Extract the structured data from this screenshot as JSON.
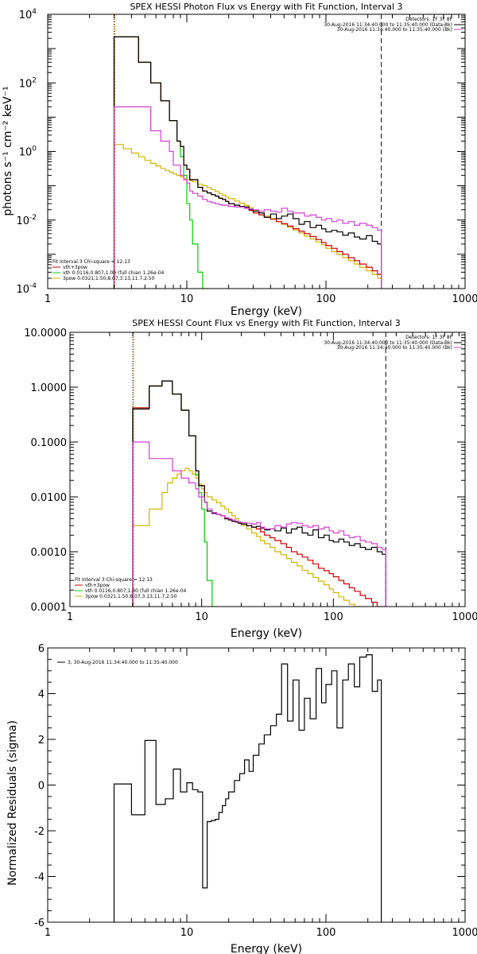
{
  "chart_data": [
    {
      "type": "line",
      "step": true,
      "title": "SPEX HESSI Photon Flux vs Energy with Fit Function, Interval 3",
      "xlabel": "Energy (keV)",
      "ylabel": "photons s⁻¹ cm⁻² keV⁻¹",
      "xscale": "log",
      "yscale": "log",
      "xlim": [
        1,
        1000
      ],
      "ylim": [
        0.0001,
        10000
      ],
      "xticks": [
        {
          "v": 1,
          "label": "1"
        },
        {
          "v": 10,
          "label": "10"
        },
        {
          "v": 100,
          "label": "100"
        },
        {
          "v": 1000,
          "label": "1000"
        }
      ],
      "yticks": [
        {
          "v": 0.0001,
          "b": "10",
          "e": "-4"
        },
        {
          "v": 0.01,
          "b": "10",
          "e": "-2"
        },
        {
          "v": 1,
          "b": "10",
          "e": "0"
        },
        {
          "v": 100,
          "b": "10",
          "e": "2"
        },
        {
          "v": 10000,
          "b": "10",
          "e": "4"
        }
      ],
      "vlines": [
        {
          "x": 3,
          "style": "dotted",
          "color": "#000000"
        },
        {
          "x": 250,
          "style": "dashed",
          "color": "#000000"
        }
      ],
      "legend_tr": {
        "header": "Detectors: 1F 3F 8F",
        "items": [
          {
            "label": "30-Aug-2016 11:34:40.000 to 11:35:40.000 (Data-Bk)",
            "color": "#000000"
          },
          {
            "label": "30-Aug-2016 11:34:40.000 to 11:35:40.000 (Bk)",
            "color": "#d43ed4"
          }
        ]
      },
      "legend_bl": {
        "header": "Fit Interval  3    Chi-square = 12.13",
        "items": [
          {
            "label": "vth+3pow",
            "color": "#d40000"
          },
          {
            "label": "vth 0.0116,0.807,1.00  (full chian 1.26e-04",
            "color": "#00cc00"
          },
          {
            "label": "3pow 0.0321,1.50,8.07,3.13,11.7,2.50",
            "color": "#d4b400"
          }
        ]
      },
      "edges": [
        3,
        3.5,
        4,
        4.5,
        5,
        5.5,
        6,
        6.5,
        7,
        7.5,
        8,
        8.5,
        9,
        9.5,
        10,
        10.5,
        11,
        12,
        13,
        14,
        15,
        16,
        17,
        18,
        19,
        20,
        22,
        24,
        26,
        28,
        30,
        33,
        36,
        40,
        44,
        48,
        53,
        58,
        64,
        70,
        77,
        85,
        93,
        100,
        110,
        120,
        132,
        145,
        160,
        175,
        195,
        215,
        235,
        250
      ],
      "series": [
        {
          "color": "#000000",
          "zorder": 5,
          "values": [
            2200,
            2200,
            2200,
            400,
            400,
            100,
            100,
            30,
            30,
            8,
            8,
            2,
            1.4,
            0.4,
            0.3,
            0.15,
            0.15,
            0.09,
            0.07,
            0.062,
            0.055,
            0.05,
            0.043,
            0.04,
            0.035,
            0.03,
            0.027,
            0.025,
            0.024,
            0.02,
            0.018,
            0.016,
            0.012,
            0.015,
            0.011,
            0.013,
            0.015,
            0.011,
            0.0075,
            0.009,
            0.006,
            0.007,
            0.0055,
            0.0045,
            0.005,
            0.0045,
            0.0036,
            0.0042,
            0.0032,
            0.0028,
            0.0035,
            0.0024,
            0.002
          ]
        },
        {
          "color": "#00cc00",
          "zorder": 3,
          "values": [
            2200,
            2200,
            2200,
            400,
            400,
            100,
            100,
            30,
            30,
            8,
            8,
            2,
            0.7,
            0.2,
            0.03,
            0.01,
            0.002,
            0.0003,
            0.0001
          ]
        },
        {
          "color": "#d40000",
          "zorder": 4,
          "values": [
            2200,
            2200,
            2200,
            400,
            400,
            100,
            100,
            30,
            30,
            8,
            8,
            2,
            1.4,
            0.4,
            0.3,
            0.15,
            0.15,
            0.09,
            0.07,
            0.062,
            0.055,
            0.05,
            0.043,
            0.04,
            0.035,
            0.03,
            0.027,
            0.025,
            0.022,
            0.019,
            0.016,
            0.014,
            0.012,
            0.0105,
            0.009,
            0.0078,
            0.0066,
            0.0056,
            0.0047,
            0.004,
            0.0033,
            0.0027,
            0.0022,
            0.0018,
            0.0015,
            0.0012,
            0.001,
            0.0008,
            0.00065,
            0.00052,
            0.00042,
            0.00033,
            0.00026
          ]
        },
        {
          "color": "#d4b400",
          "zorder": 2,
          "values": [
            1.6,
            1.2,
            0.9,
            0.7,
            0.55,
            0.45,
            0.38,
            0.32,
            0.28,
            0.25,
            0.22,
            0.2,
            0.18,
            0.16,
            0.15,
            0.14,
            0.13,
            0.11,
            0.1,
            0.088,
            0.078,
            0.068,
            0.06,
            0.053,
            0.047,
            0.042,
            0.036,
            0.031,
            0.027,
            0.023,
            0.019,
            0.016,
            0.013,
            0.011,
            0.009,
            0.0075,
            0.0062,
            0.0051,
            0.0042,
            0.0034,
            0.0028,
            0.0023,
            0.0019,
            0.0015,
            0.0012,
            0.001,
            0.0008,
            0.00065,
            0.00052,
            0.00042,
            0.00033,
            0.00026,
            0.0002
          ]
        },
        {
          "color": "#d43ed4",
          "zorder": 6,
          "values": [
            20,
            20,
            20,
            20,
            20,
            4,
            4,
            2,
            2,
            1,
            0.4,
            0.4,
            0.2,
            0.15,
            0.12,
            0.07,
            0.06,
            0.05,
            0.04,
            0.035,
            0.032,
            0.03,
            0.028,
            0.027,
            0.027,
            0.025,
            0.024,
            0.024,
            0.022,
            0.021,
            0.02,
            0.018,
            0.02,
            0.018,
            0.017,
            0.022,
            0.018,
            0.016,
            0.016,
            0.013,
            0.014,
            0.012,
            0.01,
            0.011,
            0.009,
            0.01,
            0.008,
            0.009,
            0.007,
            0.008,
            0.007,
            0.006,
            0.005
          ]
        }
      ]
    },
    {
      "type": "line",
      "step": true,
      "title": "SPEX HESSI Count Flux vs Energy with Fit Function, Interval 3",
      "xlabel": "Energy (keV)",
      "ylabel": "",
      "xscale": "log",
      "yscale": "log",
      "xlim": [
        1,
        1000
      ],
      "ylim": [
        0.0001,
        10
      ],
      "xticks": [
        {
          "v": 1,
          "label": "1"
        },
        {
          "v": 10,
          "label": "10"
        },
        {
          "v": 100,
          "label": "100"
        },
        {
          "v": 1000,
          "label": "1000"
        }
      ],
      "yticks": [
        {
          "v": 0.0001,
          "label": "0.0001"
        },
        {
          "v": 0.001,
          "label": "0.0010"
        },
        {
          "v": 0.01,
          "label": "0.0100"
        },
        {
          "v": 0.1,
          "label": "0.1000"
        },
        {
          "v": 1,
          "label": "1.0000"
        },
        {
          "v": 10,
          "label": "10.0000"
        }
      ],
      "vlines": [
        {
          "x": 3,
          "style": "dotted",
          "color": "#000000"
        },
        {
          "x": 250,
          "style": "dashed",
          "color": "#000000"
        }
      ],
      "legend_tr": {
        "header": "Detectors: 1F 3F 8F",
        "items": [
          {
            "label": "30-Aug-2016 11:34:40.000 to 11:35:40.000 (Data-Bk)",
            "color": "#000000"
          },
          {
            "label": "30-Aug-2016 11:34:40.000 to 11:35:40.000 (Bk)",
            "color": "#d43ed4"
          }
        ]
      },
      "legend_bl": {
        "header": "Fit Interval  3    Chi-square = 12.13",
        "items": [
          {
            "label": "vth+3pow",
            "color": "#d40000"
          },
          {
            "label": "vth 0.0116,0.807,1.00  (full chian 1.26e-04",
            "color": "#00cc00"
          },
          {
            "label": "3pow 0.0321,1.50,8.07,3.13,11.7,2.50",
            "color": "#d4b400"
          }
        ]
      },
      "edges": [
        3,
        3.5,
        4,
        4.5,
        5,
        5.5,
        6,
        6.5,
        7,
        7.5,
        8,
        8.5,
        9,
        9.5,
        10,
        10.5,
        11,
        12,
        13,
        14,
        15,
        16,
        17,
        18,
        19,
        20,
        22,
        24,
        26,
        28,
        30,
        33,
        36,
        40,
        44,
        48,
        53,
        58,
        64,
        70,
        77,
        85,
        93,
        100,
        110,
        120,
        132,
        145,
        160,
        175,
        195,
        215,
        235,
        250
      ],
      "series": [
        {
          "color": "#000000",
          "zorder": 5,
          "values": [
            0.4,
            0.4,
            1.05,
            1.05,
            1.3,
            1.3,
            0.75,
            0.75,
            0.38,
            0.38,
            0.13,
            0.13,
            0.03,
            0.016,
            0.016,
            0.008,
            0.0055,
            0.005,
            0.0048,
            0.0045,
            0.004,
            0.0038,
            0.0036,
            0.0035,
            0.0033,
            0.0032,
            0.003,
            0.0028,
            0.0029,
            0.0027,
            0.0025,
            0.0026,
            0.0024,
            0.0027,
            0.0022,
            0.0026,
            0.0028,
            0.0022,
            0.002,
            0.0025,
            0.0018,
            0.002,
            0.0016,
            0.0015,
            0.0017,
            0.0015,
            0.0013,
            0.0014,
            0.0012,
            0.0011,
            0.0012,
            0.001,
            0.0009
          ]
        },
        {
          "color": "#00cc00",
          "zorder": 3,
          "values": [
            0.42,
            0.42,
            1.05,
            1.05,
            1.3,
            1.3,
            0.75,
            0.75,
            0.38,
            0.38,
            0.13,
            0.13,
            0.025,
            0.012,
            0.006,
            0.0015,
            0.0003,
            0.0001
          ]
        },
        {
          "color": "#d40000",
          "zorder": 4,
          "values": [
            0.42,
            0.42,
            1.05,
            1.05,
            1.3,
            1.3,
            0.75,
            0.75,
            0.38,
            0.38,
            0.13,
            0.13,
            0.03,
            0.016,
            0.016,
            0.008,
            0.0055,
            0.005,
            0.0048,
            0.0045,
            0.004,
            0.0038,
            0.0036,
            0.0035,
            0.0033,
            0.0032,
            0.003,
            0.0028,
            0.0026,
            0.0023,
            0.002,
            0.0018,
            0.0016,
            0.0014,
            0.0012,
            0.001,
            0.0009,
            0.0008,
            0.0007,
            0.0006,
            0.0005,
            0.00045,
            0.0004,
            0.00035,
            0.0003,
            0.00026,
            0.00022,
            0.00019,
            0.00016,
            0.00014,
            0.00012,
            0.0001,
            9e-05
          ]
        },
        {
          "color": "#d4b400",
          "zorder": 2,
          "values": [
            0.003,
            0.003,
            0.006,
            0.006,
            0.012,
            0.018,
            0.022,
            0.026,
            0.03,
            0.033,
            0.03,
            0.026,
            0.022,
            0.017,
            0.014,
            0.012,
            0.01,
            0.0088,
            0.0078,
            0.0068,
            0.006,
            0.0052,
            0.0045,
            0.004,
            0.0035,
            0.003,
            0.0026,
            0.0022,
            0.0019,
            0.0016,
            0.0014,
            0.0012,
            0.001,
            0.00088,
            0.00075,
            0.00064,
            0.00055,
            0.00046,
            0.0004,
            0.00034,
            0.00029,
            0.00025,
            0.00021,
            0.00018,
            0.00015,
            0.00013,
            0.00011,
            0.0001,
            9e-05
          ]
        },
        {
          "color": "#d43ed4",
          "zorder": 6,
          "values": [
            0.1,
            0.1,
            0.05,
            0.05,
            0.05,
            0.05,
            0.03,
            0.03,
            0.022,
            0.022,
            0.018,
            0.018,
            0.014,
            0.01,
            0.01,
            0.008,
            0.006,
            0.0052,
            0.0048,
            0.0045,
            0.0042,
            0.004,
            0.0038,
            0.0036,
            0.0035,
            0.0034,
            0.0033,
            0.0032,
            0.0034,
            0.0028,
            0.0026,
            0.0026,
            0.003,
            0.0028,
            0.0032,
            0.0034,
            0.0033,
            0.003,
            0.0028,
            0.003,
            0.0026,
            0.0028,
            0.0024,
            0.0022,
            0.0024,
            0.002,
            0.0018,
            0.0019,
            0.0016,
            0.0015,
            0.0014,
            0.0012,
            0.0011
          ]
        }
      ]
    },
    {
      "type": "line",
      "step": true,
      "title": "",
      "xlabel": "Energy (keV)",
      "ylabel": "Normalized Residuals (sigma)",
      "xscale": "log",
      "yscale": "linear",
      "xlim": [
        1,
        1000
      ],
      "ylim": [
        -6,
        6
      ],
      "xticks": [
        {
          "v": 1,
          "label": "1"
        },
        {
          "v": 10,
          "label": "10"
        },
        {
          "v": 100,
          "label": "100"
        },
        {
          "v": 1000,
          "label": "1000"
        }
      ],
      "yticks": [
        {
          "v": -6,
          "label": "-6"
        },
        {
          "v": -4,
          "label": "-4"
        },
        {
          "v": -2,
          "label": "-2"
        },
        {
          "v": 0,
          "label": "0"
        },
        {
          "v": 2,
          "label": "2"
        },
        {
          "v": 4,
          "label": "4"
        },
        {
          "v": 6,
          "label": "6"
        }
      ],
      "vlines": [],
      "legend_tl": {
        "items": [
          {
            "label": "3, 30-Aug-2016 11:34:40.000 to 11:35:40.000",
            "color": "#000000"
          }
        ]
      },
      "edges": [
        3,
        4,
        5,
        6,
        7,
        8,
        9,
        10,
        11,
        12,
        13,
        14,
        15,
        16,
        17,
        18,
        19,
        20,
        22,
        24,
        26,
        28,
        30,
        33,
        36,
        40,
        44,
        48,
        53,
        58,
        64,
        70,
        77,
        85,
        93,
        100,
        110,
        120,
        132,
        145,
        160,
        175,
        195,
        215,
        235,
        250
      ],
      "series": [
        {
          "color": "#000000",
          "zorder": 5,
          "values": [
            0.05,
            -1.3,
            1.95,
            -0.85,
            -0.6,
            0.7,
            -0.3,
            0.1,
            -0.2,
            -0.3,
            -4.5,
            -1.6,
            -1.55,
            -1.5,
            -1.2,
            -0.9,
            -0.6,
            -0.3,
            0.2,
            0.5,
            1.1,
            0.6,
            1.3,
            1.8,
            2.2,
            2.6,
            3.1,
            5.3,
            2.8,
            4.6,
            2.4,
            3.8,
            2.9,
            5.1,
            3.6,
            4.4,
            5.0,
            2.5,
            4.6,
            5.3,
            4.3,
            5.6,
            5.7,
            4.1,
            4.6
          ]
        }
      ]
    }
  ]
}
